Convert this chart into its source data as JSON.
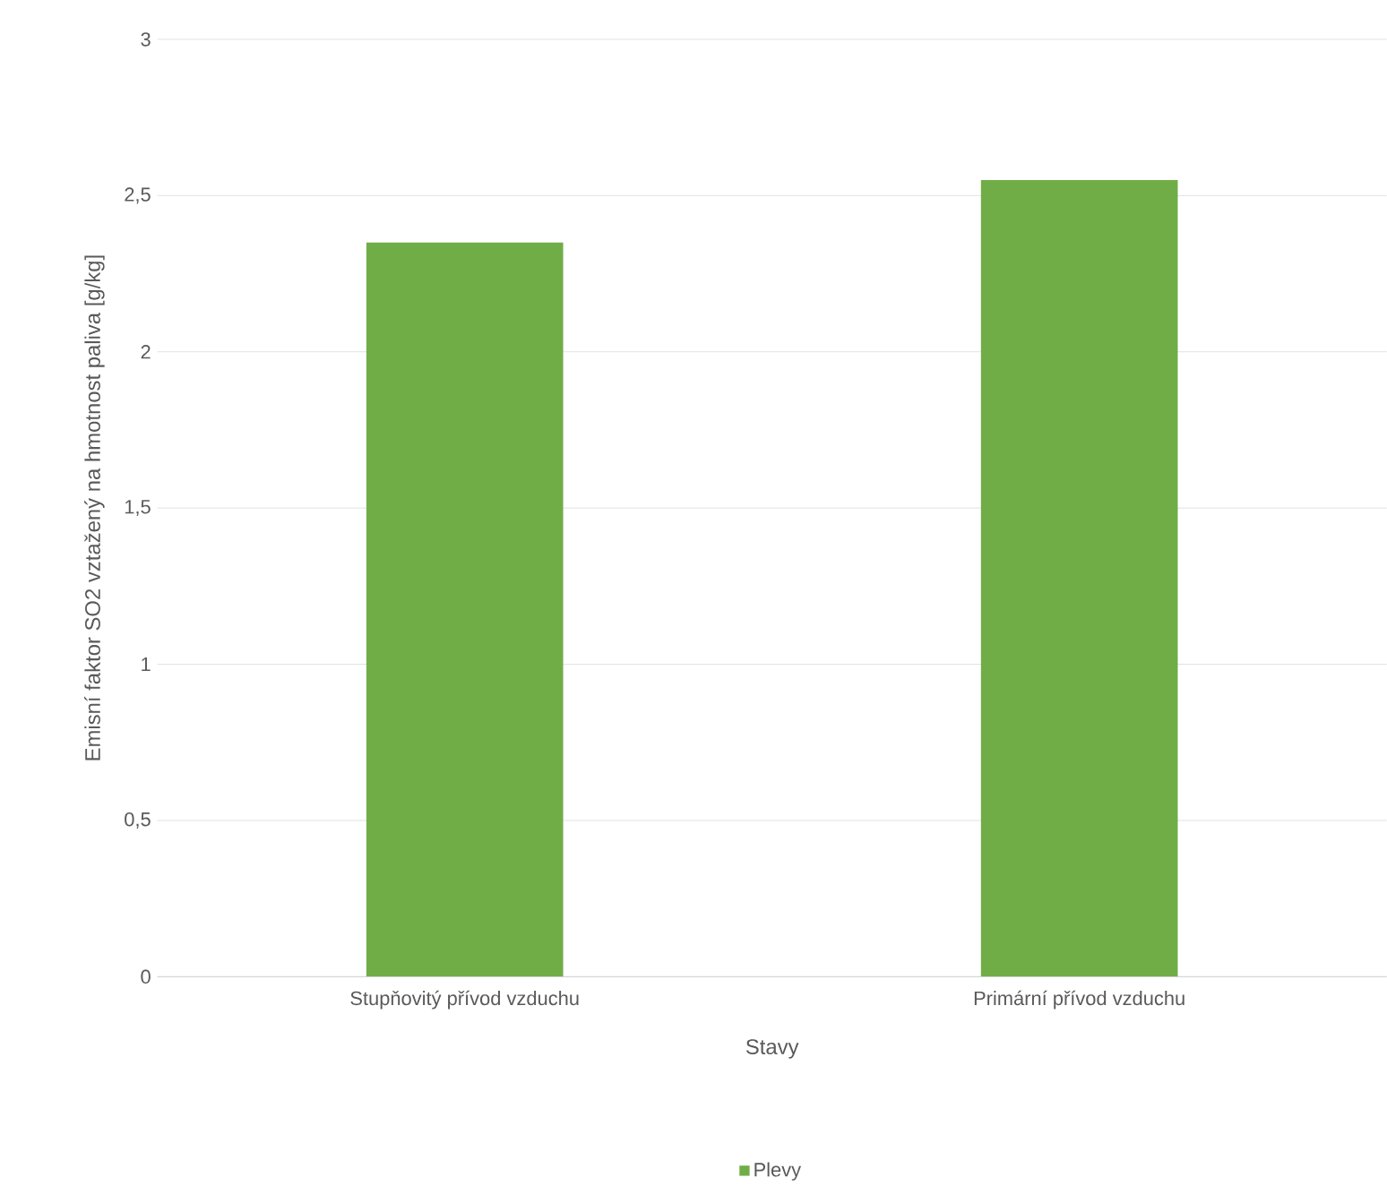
{
  "chart_data": {
    "type": "bar",
    "xlabel": "Stavy",
    "ylabel": "Emisní faktor SO2 vztažený na hmotnost paliva [g/kg]",
    "categories": [
      "Stupňovitý přívod vzduchu",
      "Primární přívod vzduchu"
    ],
    "series": [
      {
        "name": "Plevy",
        "color": "#70ad47",
        "values": [
          2.35,
          2.55
        ]
      }
    ],
    "ylim": [
      0,
      3
    ],
    "yticks": [
      0,
      {
        "value": 0.5,
        "label": "0,5"
      },
      1,
      {
        "value": 1.5,
        "label": "1,5"
      },
      2,
      {
        "value": 2.5,
        "label": "2,5"
      },
      3
    ],
    "grid": "y",
    "legend": "bottom"
  }
}
